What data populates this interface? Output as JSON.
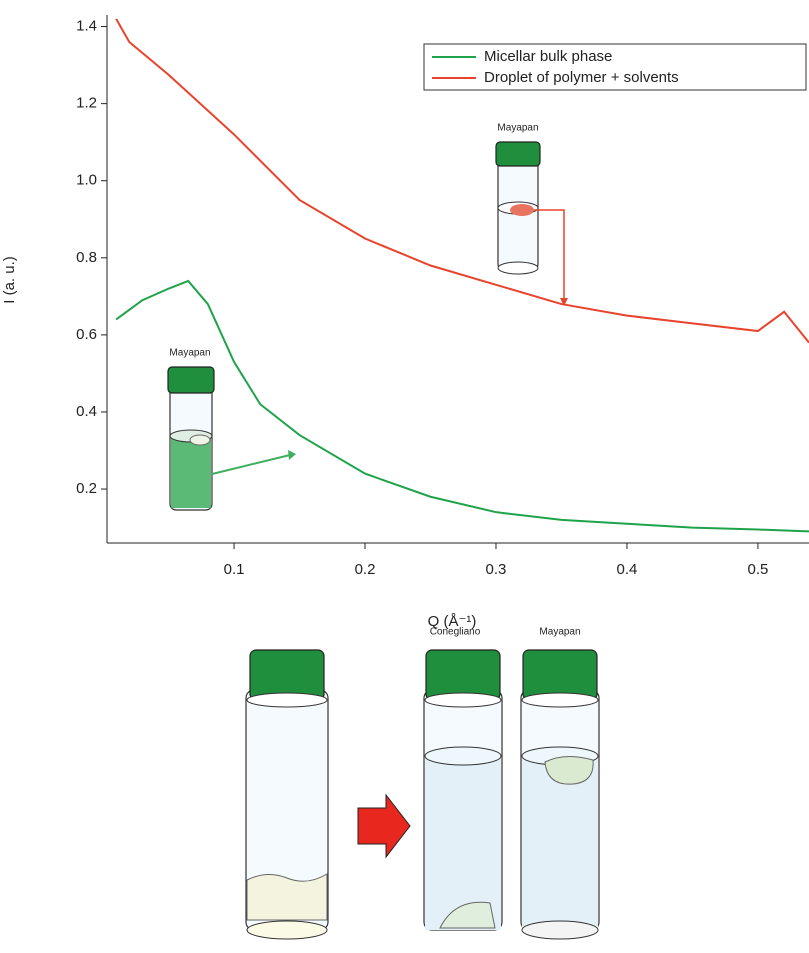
{
  "chart_data": {
    "type": "line",
    "x_label": "Q (Å⁻¹)",
    "y_label": "I (a. u.)",
    "xlim": [
      0.003,
      0.539
    ],
    "ylim": [
      0.06,
      1.43
    ],
    "xticks": [
      0.1,
      0.2,
      0.3,
      0.4,
      0.5
    ],
    "yticks": [
      0.2,
      0.4,
      0.6,
      0.8,
      {
        "value": 1,
        "label": "1.0"
      },
      1.2,
      1.4
    ],
    "legend": "top-right",
    "series": [
      {
        "name": "Micellar bulk phase",
        "color": "#1fa34a",
        "x": [
          0.01,
          0.03,
          0.05,
          0.065,
          0.08,
          0.1,
          0.12,
          0.15,
          0.2,
          0.25,
          0.3,
          0.35,
          0.4,
          0.45,
          0.5,
          0.539
        ],
        "values": [
          0.64,
          0.69,
          0.72,
          0.74,
          0.68,
          0.53,
          0.42,
          0.34,
          0.24,
          0.18,
          0.14,
          0.12,
          0.11,
          0.1,
          0.095,
          0.09
        ]
      },
      {
        "name": "Droplet of polymer + solvents",
        "color": "#e8432c",
        "x": [
          0.01,
          0.02,
          0.05,
          0.1,
          0.15,
          0.2,
          0.25,
          0.3,
          0.35,
          0.4,
          0.45,
          0.5,
          0.52,
          0.539
        ],
        "values": [
          1.42,
          1.36,
          1.275,
          1.12,
          0.95,
          0.85,
          0.78,
          0.73,
          0.68,
          0.65,
          0.63,
          0.61,
          0.66,
          0.58
        ]
      }
    ],
    "annotations": [
      "Mayapan",
      "Mayapan",
      "Conegliano",
      "Mayapan"
    ]
  }
}
